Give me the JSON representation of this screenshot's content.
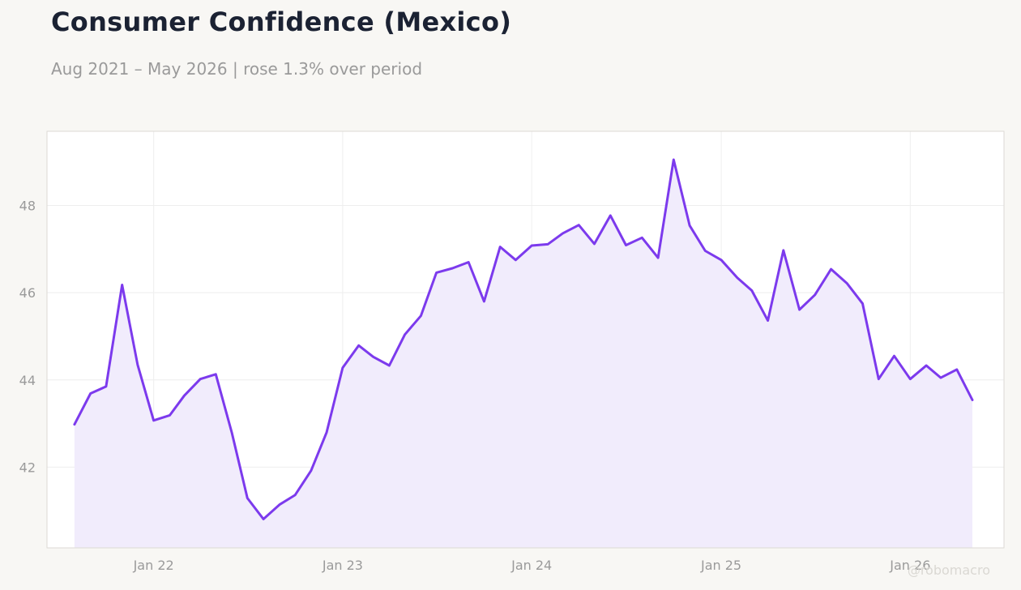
{
  "header": {
    "title": "Consumer Confidence (Mexico)",
    "subtitle": "Aug 2021 – May 2026 | rose 1.3% over period"
  },
  "watermark": "@robomacro",
  "colors": {
    "line": "#7c3aed",
    "fill": "#f1ecfc",
    "plot_background": "#ffffff",
    "plot_border": "#dcdad5",
    "grid": "#eeeeee",
    "tick_label": "#9a9a9a"
  },
  "chart_data": {
    "type": "area",
    "title": "Consumer Confidence (Mexico)",
    "subtitle": "Aug 2021 – May 2026 | rose 1.3% over period",
    "xlabel": "",
    "ylabel": "",
    "x_ticks": [
      {
        "x": "2022-01",
        "label": "Jan 22"
      },
      {
        "x": "2023-01",
        "label": "Jan 23"
      },
      {
        "x": "2024-01",
        "label": "Jan 24"
      },
      {
        "x": "2025-01",
        "label": "Jan 25"
      },
      {
        "x": "2026-01",
        "label": "Jan 26"
      }
    ],
    "y_ticks": [
      42,
      44,
      46,
      48
    ],
    "xlim": [
      "2021-06-09",
      "2026-07-01"
    ],
    "ylim": [
      40.15,
      49.7
    ],
    "grid": true,
    "legend": "none",
    "series": [
      {
        "points": [
          [
            "2021-08",
            42.98
          ],
          [
            "2021-09",
            43.69
          ],
          [
            "2021-10",
            43.85
          ],
          [
            "2021-11",
            46.18
          ],
          [
            "2021-12",
            44.35
          ],
          [
            "2022-01",
            43.07
          ],
          [
            "2022-02",
            43.19
          ],
          [
            "2022-03",
            43.64
          ],
          [
            "2022-04",
            44.02
          ],
          [
            "2022-05",
            44.13
          ],
          [
            "2022-06",
            42.79
          ],
          [
            "2022-07",
            41.29
          ],
          [
            "2022-08",
            40.81
          ],
          [
            "2022-09",
            41.14
          ],
          [
            "2022-10",
            41.36
          ],
          [
            "2022-11",
            41.92
          ],
          [
            "2022-12",
            42.8
          ],
          [
            "2023-01",
            44.28
          ],
          [
            "2023-02",
            44.79
          ],
          [
            "2023-03",
            44.53
          ],
          [
            "2023-04",
            44.33
          ],
          [
            "2023-05",
            45.04
          ],
          [
            "2023-06",
            45.47
          ],
          [
            "2023-07",
            46.46
          ],
          [
            "2023-08",
            46.56
          ],
          [
            "2023-09",
            46.7
          ],
          [
            "2023-10",
            45.8
          ],
          [
            "2023-11",
            47.05
          ],
          [
            "2023-12",
            46.75
          ],
          [
            "2024-01",
            47.08
          ],
          [
            "2024-02",
            47.11
          ],
          [
            "2024-03",
            47.36
          ],
          [
            "2024-04",
            47.55
          ],
          [
            "2024-05",
            47.12
          ],
          [
            "2024-06",
            47.77
          ],
          [
            "2024-07",
            47.09
          ],
          [
            "2024-08",
            47.26
          ],
          [
            "2024-09",
            46.8
          ],
          [
            "2024-10",
            49.05
          ],
          [
            "2024-11",
            47.54
          ],
          [
            "2024-12",
            46.96
          ],
          [
            "2025-01",
            46.75
          ],
          [
            "2025-02",
            46.34
          ],
          [
            "2025-03",
            46.05
          ],
          [
            "2025-04",
            45.36
          ],
          [
            "2025-05",
            46.97
          ],
          [
            "2025-06",
            45.61
          ],
          [
            "2025-07",
            45.95
          ],
          [
            "2025-08",
            46.54
          ],
          [
            "2025-09",
            46.21
          ],
          [
            "2025-10",
            45.75
          ],
          [
            "2025-11",
            44.02
          ],
          [
            "2025-12",
            44.55
          ],
          [
            "2026-01",
            44.02
          ],
          [
            "2026-02",
            44.33
          ],
          [
            "2026-03",
            44.05
          ],
          [
            "2026-04",
            44.24
          ],
          [
            "2026-05",
            43.54
          ]
        ]
      }
    ]
  }
}
